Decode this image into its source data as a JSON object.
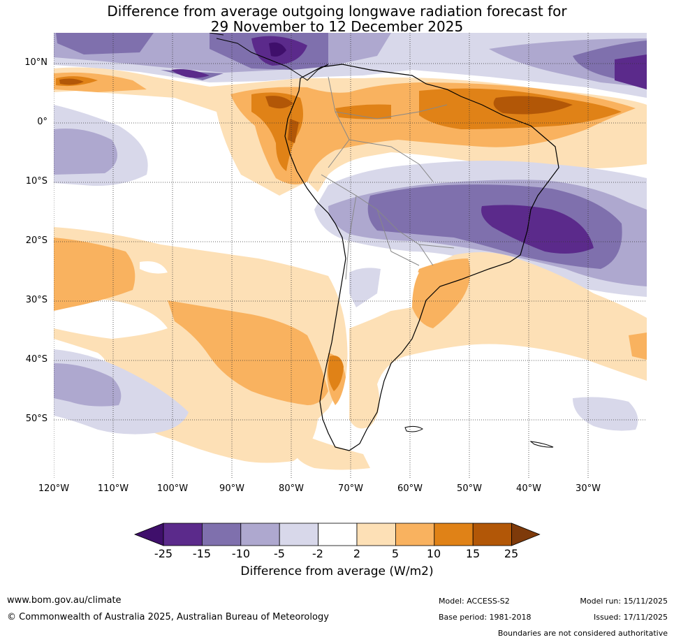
{
  "title": {
    "line1": "Difference from average outgoing longwave radiation forecast for",
    "line2": "29 November to 12 December 2025"
  },
  "map": {
    "lat_labels": [
      "10°N",
      "0°",
      "10°S",
      "20°S",
      "30°S",
      "40°S",
      "50°S"
    ],
    "lon_labels": [
      "120°W",
      "110°W",
      "100°W",
      "90°W",
      "80°W",
      "70°W",
      "60°W",
      "50°W",
      "40°W",
      "30°W"
    ]
  },
  "colorbar": {
    "ticks": [
      "-25",
      "-15",
      "-10",
      "-5",
      "-2",
      "2",
      "5",
      "10",
      "15",
      "25"
    ],
    "colors": [
      "#3f0f6b",
      "#5b2a8b",
      "#7f70ad",
      "#aea8cf",
      "#d8d8ea",
      "#ffffff",
      "#fde0b6",
      "#f9b25f",
      "#e08217",
      "#b25707",
      "#7e3a0a"
    ],
    "label": "Difference from average (W/m2)"
  },
  "footer": {
    "website": "www.bom.gov.au/climate",
    "copyright": "© Commonwealth of Australia 2025, Australian Bureau of Meteorology",
    "model": "Model: ACCESS-S2",
    "base_period": "Base period: 1981-2018",
    "model_run": "Model run: 15/11/2025",
    "issued": "Issued: 17/11/2025",
    "disclaimer": "Boundaries are not considered authoritative"
  }
}
